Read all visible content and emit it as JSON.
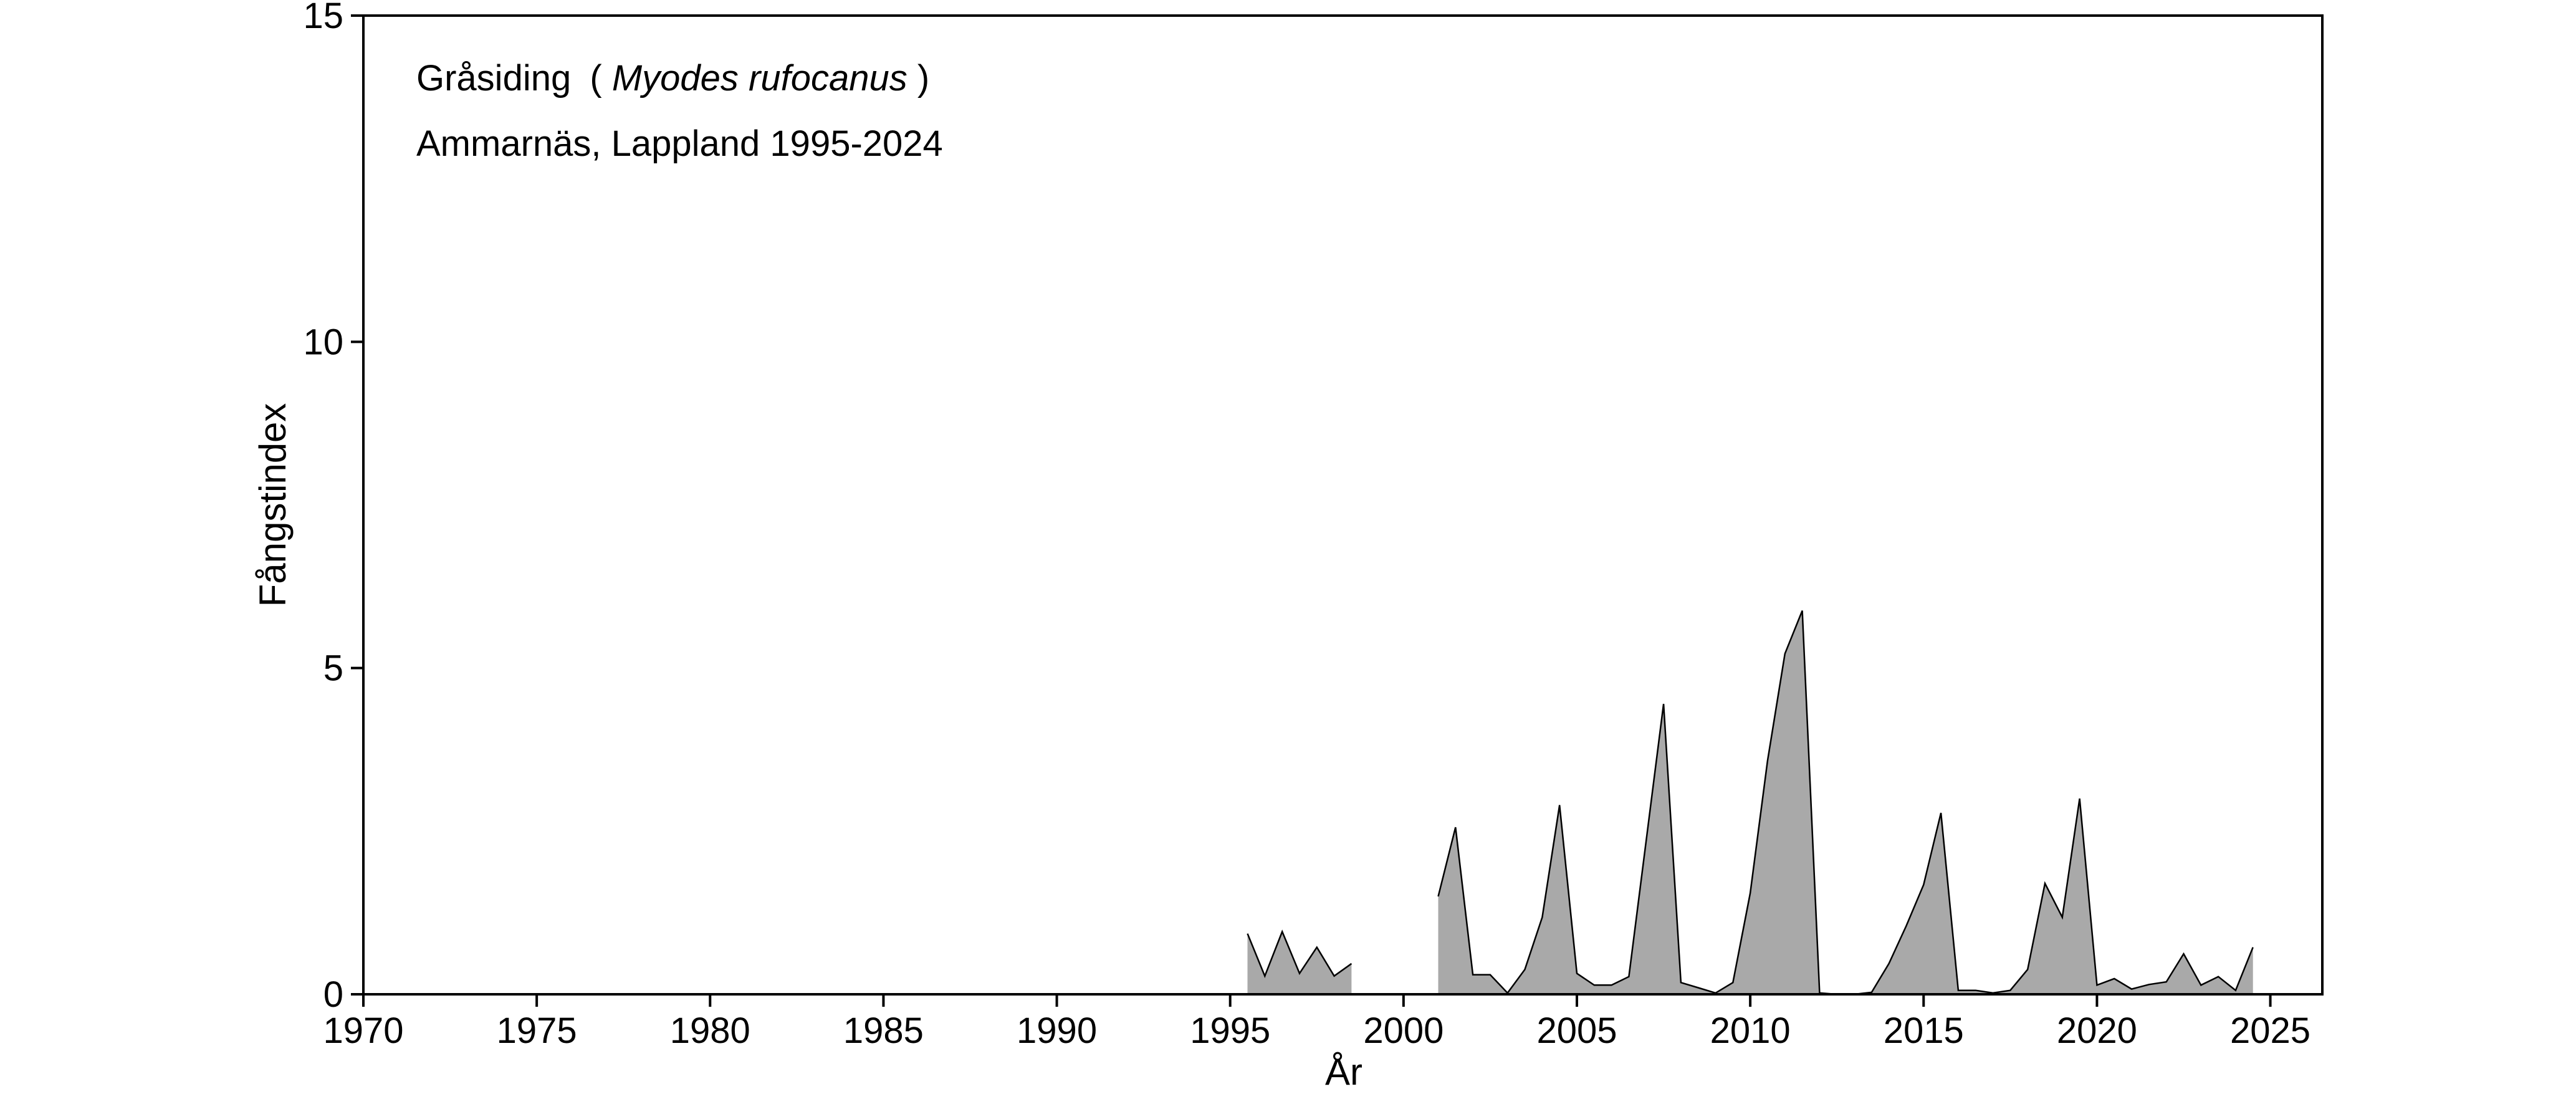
{
  "chart_data": {
    "type": "area",
    "title": "",
    "annotations": {
      "species_name": "Gråsiding",
      "paren_open": "(",
      "species_latin": "Myodes rufocanus",
      "paren_close": ")",
      "location": "Ammarnäs, Lappland 1995-2024"
    },
    "xlabel": "År",
    "ylabel": "Fångstindex",
    "xlim": [
      1970,
      2026.5
    ],
    "ylim": [
      0,
      15
    ],
    "x_ticks": [
      1970,
      1975,
      1980,
      1985,
      1990,
      1995,
      2000,
      2005,
      2010,
      2015,
      2020,
      2025
    ],
    "y_ticks": [
      0,
      5,
      10,
      15
    ],
    "grid": false,
    "legend": "none",
    "fill_color": "#a9a9a9",
    "line_color": "#000000",
    "series": [
      {
        "segments": [
          [
            [
              1995.5,
              0.93
            ],
            [
              1996.0,
              0.28
            ],
            [
              1996.5,
              0.96
            ],
            [
              1997.0,
              0.32
            ],
            [
              1997.5,
              0.72
            ],
            [
              1998.0,
              0.28
            ],
            [
              1998.5,
              0.47
            ]
          ],
          [
            [
              2001.0,
              1.5
            ],
            [
              2001.5,
              2.56
            ],
            [
              2002.0,
              0.3
            ],
            [
              2002.5,
              0.3
            ],
            [
              2003.0,
              0.02
            ],
            [
              2003.5,
              0.38
            ],
            [
              2004.0,
              1.18
            ],
            [
              2004.5,
              2.9
            ],
            [
              2005.0,
              0.32
            ],
            [
              2005.5,
              0.14
            ],
            [
              2006.0,
              0.14
            ],
            [
              2006.5,
              0.27
            ],
            [
              2007.5,
              4.45
            ],
            [
              2008.0,
              0.18
            ],
            [
              2008.5,
              0.1
            ],
            [
              2009.0,
              0.02
            ],
            [
              2009.5,
              0.18
            ],
            [
              2010.0,
              1.55
            ],
            [
              2010.5,
              3.58
            ],
            [
              2011.0,
              5.22
            ],
            [
              2011.5,
              5.88
            ],
            [
              2012.0,
              0.02
            ],
            [
              2012.5,
              0.0
            ],
            [
              2013.0,
              0.0
            ],
            [
              2013.5,
              0.03
            ],
            [
              2014.0,
              0.47
            ],
            [
              2014.5,
              1.05
            ],
            [
              2015.0,
              1.68
            ],
            [
              2015.5,
              2.78
            ],
            [
              2016.0,
              0.06
            ],
            [
              2016.5,
              0.06
            ],
            [
              2017.0,
              0.02
            ],
            [
              2017.5,
              0.06
            ],
            [
              2018.0,
              0.38
            ],
            [
              2018.5,
              1.7
            ],
            [
              2019.0,
              1.18
            ],
            [
              2019.5,
              3.0
            ],
            [
              2020.0,
              0.14
            ],
            [
              2020.5,
              0.24
            ],
            [
              2021.0,
              0.08
            ],
            [
              2021.5,
              0.15
            ],
            [
              2022.0,
              0.19
            ],
            [
              2022.5,
              0.62
            ],
            [
              2023.0,
              0.14
            ],
            [
              2023.5,
              0.27
            ],
            [
              2024.0,
              0.06
            ],
            [
              2024.5,
              0.72
            ]
          ]
        ]
      }
    ]
  }
}
